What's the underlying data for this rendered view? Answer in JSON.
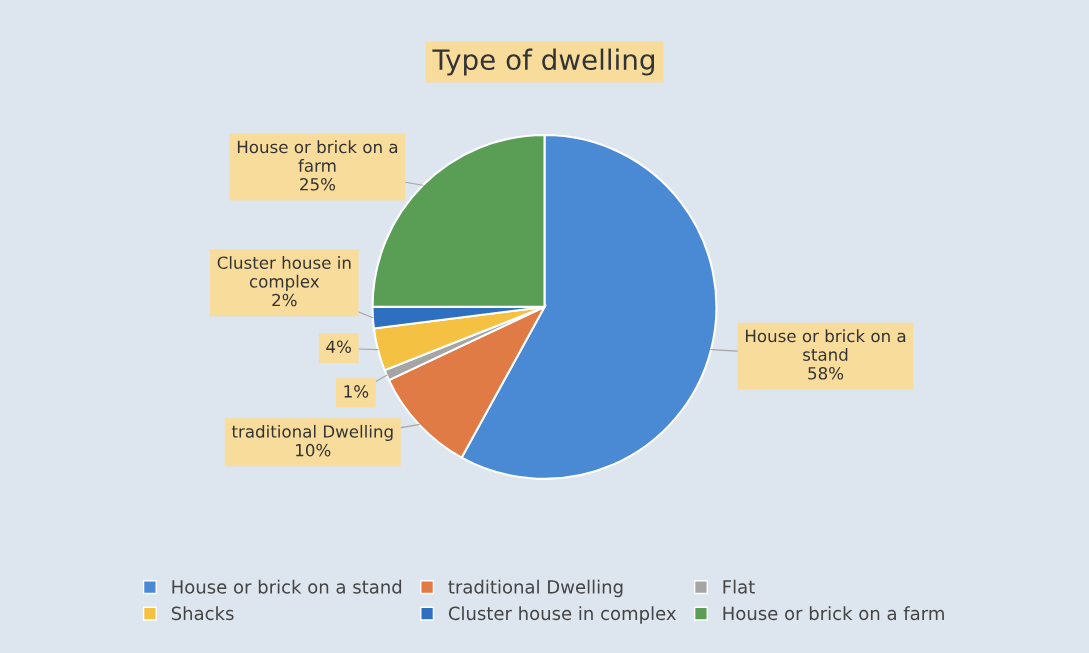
{
  "chart_data": {
    "type": "pie",
    "title": "Type of dwelling",
    "categories": [
      "House or brick on a stand",
      "traditional Dwelling",
      "Flat",
      "Shacks",
      "Cluster house in complex",
      "House or brick on a farm"
    ],
    "values": [
      58,
      10,
      1,
      4,
      2,
      25
    ],
    "colors": [
      "#4a8ad4",
      "#e07b45",
      "#a5a5a5",
      "#f4c143",
      "#2f6fc0",
      "#5a9e55"
    ],
    "value_labels": [
      "House or brick on a\nstand\n58%",
      "traditional Dwelling\n10%",
      "1%",
      "4%",
      "Cluster house in\ncomplex\n2%",
      "House or brick on a\nfarm\n25%"
    ],
    "legend": "bottom"
  }
}
